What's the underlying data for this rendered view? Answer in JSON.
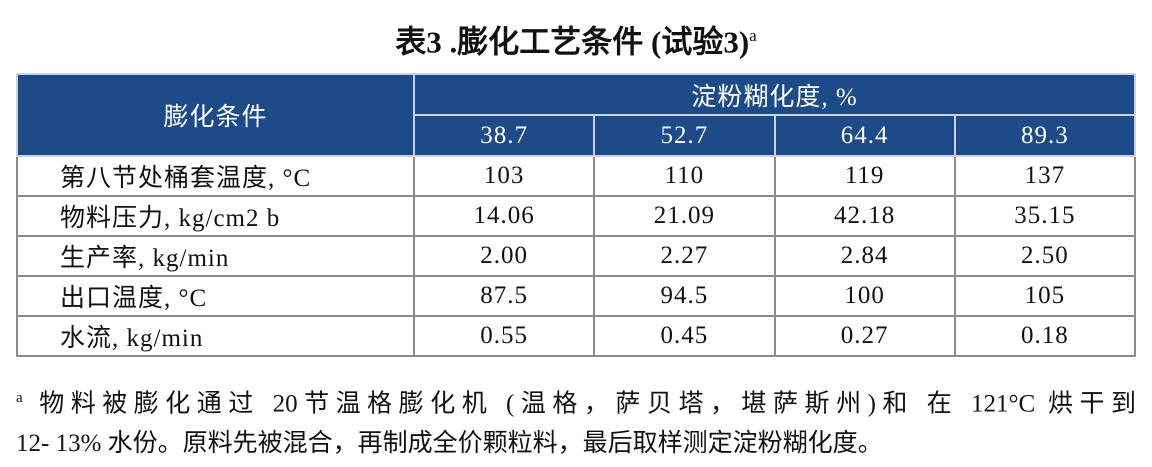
{
  "title": {
    "text": "表3 .膨化工艺条件 (试验3)",
    "sup": "a"
  },
  "table": {
    "corner": "膨化条件",
    "group": "淀粉糊化度, %",
    "columns": [
      "38.7",
      "52.7",
      "64.4",
      "89.3"
    ],
    "rows": [
      [
        "第八节处桶套温度, °C",
        "103",
        "110",
        "119",
        "137"
      ],
      [
        "物料压力, kg/cm2 b",
        "14.06",
        "21.09",
        "42.18",
        "35.15"
      ],
      [
        "生产率, kg/min",
        "2.00",
        "2.27",
        "2.84",
        "2.50"
      ],
      [
        "出口温度, °C",
        "87.5",
        "94.5",
        "100",
        "105"
      ],
      [
        "水流, kg/min",
        "0.55",
        "0.45",
        "0.27",
        "0.18"
      ]
    ]
  },
  "footnote": {
    "mark": "a",
    "lines": [
      "物料被膨化通过 20节温格膨化机 (温格，萨贝塔，堪萨斯州)和 在 121°C 烘干到",
      "12- 13% 水份。原料先被混合，再制成全价颗粒料，最后取样测定淀粉糊化度。"
    ]
  }
}
